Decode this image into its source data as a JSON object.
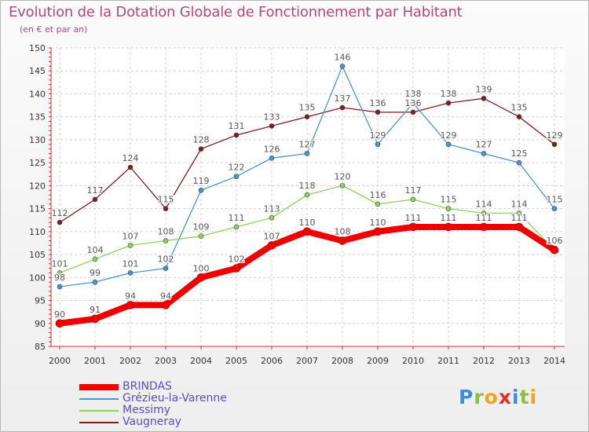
{
  "title": "Evolution de la Dotation Globale de Fonctionnement par Habitant",
  "subtitle": "(en € et par an)",
  "logo": {
    "text": "Proxiti",
    "letters": [
      {
        "char": "P",
        "color": "#3a8fd6"
      },
      {
        "char": "r",
        "color": "#8bbf3f"
      },
      {
        "char": "o",
        "color": "#f5a21b"
      },
      {
        "char": "x",
        "color": "#e0312c"
      },
      {
        "char": "i",
        "color": "#3a8fd6"
      },
      {
        "char": "t",
        "color": "#8bbf3f"
      },
      {
        "char": "i",
        "color": "#f5a21b"
      }
    ]
  },
  "chart_data": {
    "type": "line",
    "x": [
      "2000",
      "2001",
      "2002",
      "2003",
      "2004",
      "2005",
      "2006",
      "2007",
      "2008",
      "2009",
      "2010",
      "2011",
      "2012",
      "2013",
      "2014"
    ],
    "ylim": [
      85,
      150
    ],
    "yticks": [
      "85",
      "90",
      "95",
      "100",
      "105",
      "110",
      "115",
      "120",
      "125",
      "130",
      "135",
      "140",
      "145",
      "150"
    ],
    "grid": true,
    "legend_placement": "bottom",
    "series": [
      {
        "name": "Vaugneray",
        "color": "#7a1f24",
        "values": [
          112,
          117,
          124,
          115,
          128,
          131,
          133,
          135,
          137,
          136,
          136,
          138,
          139,
          135,
          129
        ]
      },
      {
        "name": "Grézieu-la-Varenne",
        "color": "#4b95cf",
        "values": [
          98,
          99,
          101,
          102,
          119,
          122,
          126,
          127,
          146,
          129,
          138,
          129,
          127,
          125,
          115
        ]
      },
      {
        "name": "Messimy",
        "color": "#8ed15f",
        "values": [
          101,
          104,
          107,
          108,
          109,
          111,
          113,
          118,
          120,
          116,
          117,
          115,
          114,
          114,
          106
        ]
      },
      {
        "name": "BRINDAS",
        "color": "#ee0000",
        "values": [
          90,
          91,
          94,
          94,
          100,
          102,
          107,
          110,
          108,
          110,
          111,
          111,
          111,
          111,
          106
        ]
      }
    ],
    "legend_order": [
      "BRINDAS",
      "Grézieu-la-Varenne",
      "Messimy",
      "Vaugneray"
    ]
  }
}
